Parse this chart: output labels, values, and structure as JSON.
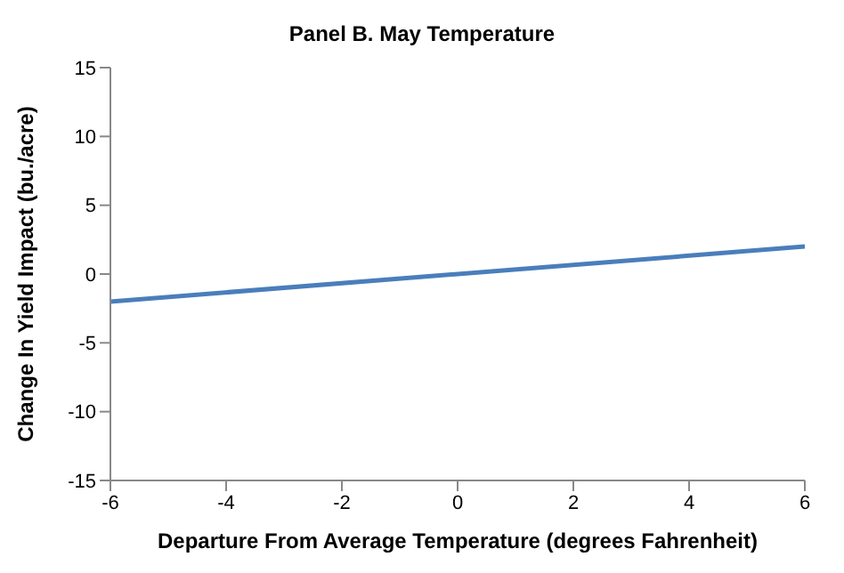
{
  "chart_data": {
    "type": "line",
    "title": "Panel B. May Temperature",
    "xlabel": "Departure From Average Temperature (degrees Fahrenheit)",
    "ylabel": "Change In Yield Impact (bu./acre)",
    "x": [
      -6,
      6
    ],
    "series": [
      {
        "color": "#4a7ebb",
        "values": [
          -2,
          2
        ]
      }
    ],
    "xlim": [
      -6,
      6
    ],
    "xticks": [
      -6,
      -4,
      -2,
      0,
      2,
      4,
      6
    ],
    "ylim": [
      -15,
      15
    ],
    "yticks": [
      -15,
      -10,
      -5,
      0,
      5,
      10,
      15
    ],
    "marker": "none",
    "line_style": "solid"
  }
}
